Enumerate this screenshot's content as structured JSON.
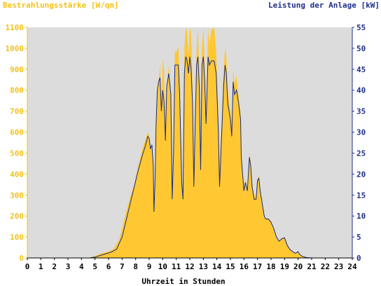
{
  "colors": {
    "irradiance_fill": "#ffc832",
    "power_line": "#1a2b80",
    "plot_bg": "#dcdcdc",
    "left_axis": "#f5c216",
    "right_axis": "#20308a"
  },
  "chart_data": {
    "type": "area",
    "title_left": "Bestrahlungsstärke [W/qm]",
    "title_right": "Leistung der Anlage [kW]",
    "xlabel": "Uhrzeit in Stunden",
    "x_ticks": [
      "0",
      "1",
      "2",
      "3",
      "4",
      "5",
      "6",
      "7",
      "8",
      "9",
      "10",
      "11",
      "12",
      "13",
      "14",
      "15",
      "16",
      "17",
      "18",
      "19",
      "20",
      "21",
      "22",
      "23",
      "24"
    ],
    "y_left_ticks": [
      "0",
      "100",
      "200",
      "300",
      "400",
      "500",
      "600",
      "700",
      "800",
      "900",
      "1000",
      "1100"
    ],
    "y_right_ticks": [
      "0",
      "5",
      "10",
      "15",
      "20",
      "25",
      "30",
      "35",
      "40",
      "45",
      "50",
      "55"
    ],
    "xlim": [
      0,
      24
    ],
    "ylim_left": [
      0,
      1100
    ],
    "ylim_right": [
      0,
      55
    ],
    "grid": false,
    "series": [
      {
        "name": "Bestrahlungsstärke [W/qm]",
        "axis": "left",
        "style": "area",
        "points": [
          [
            0,
            0
          ],
          [
            4.5,
            0
          ],
          [
            4.8,
            5
          ],
          [
            5.2,
            15
          ],
          [
            5.6,
            25
          ],
          [
            6.0,
            30
          ],
          [
            6.4,
            45
          ],
          [
            6.8,
            90
          ],
          [
            7.0,
            140
          ],
          [
            7.3,
            220
          ],
          [
            7.6,
            290
          ],
          [
            7.9,
            350
          ],
          [
            8.2,
            440
          ],
          [
            8.5,
            520
          ],
          [
            8.7,
            560
          ],
          [
            8.9,
            600
          ],
          [
            9.0,
            580
          ],
          [
            9.1,
            520
          ],
          [
            9.2,
            550
          ],
          [
            9.3,
            460
          ],
          [
            9.35,
            230
          ],
          [
            9.45,
            440
          ],
          [
            9.5,
            620
          ],
          [
            9.6,
            800
          ],
          [
            9.7,
            850
          ],
          [
            9.8,
            920
          ],
          [
            9.9,
            700
          ],
          [
            10.0,
            950
          ],
          [
            10.1,
            890
          ],
          [
            10.2,
            550
          ],
          [
            10.3,
            820
          ],
          [
            10.45,
            920
          ],
          [
            10.6,
            780
          ],
          [
            10.7,
            300
          ],
          [
            10.8,
            520
          ],
          [
            10.9,
            990
          ],
          [
            11.0,
            980
          ],
          [
            11.15,
            1010
          ],
          [
            11.25,
            860
          ],
          [
            11.4,
            420
          ],
          [
            11.5,
            300
          ],
          [
            11.6,
            1000
          ],
          [
            11.7,
            1100
          ],
          [
            11.8,
            1080
          ],
          [
            11.9,
            960
          ],
          [
            12.0,
            1100
          ],
          [
            12.1,
            1070
          ],
          [
            12.2,
            820
          ],
          [
            12.3,
            380
          ],
          [
            12.4,
            700
          ],
          [
            12.5,
            990
          ],
          [
            12.6,
            1100
          ],
          [
            12.7,
            880
          ],
          [
            12.8,
            450
          ],
          [
            12.9,
            1000
          ],
          [
            13.0,
            1100
          ],
          [
            13.1,
            920
          ],
          [
            13.2,
            700
          ],
          [
            13.35,
            1100
          ],
          [
            13.45,
            1020
          ],
          [
            13.6,
            1090
          ],
          [
            13.8,
            1100
          ],
          [
            13.95,
            980
          ],
          [
            14.1,
            700
          ],
          [
            14.2,
            420
          ],
          [
            14.35,
            650
          ],
          [
            14.5,
            900
          ],
          [
            14.6,
            1000
          ],
          [
            14.7,
            960
          ],
          [
            14.8,
            800
          ],
          [
            15.0,
            700
          ],
          [
            15.1,
            600
          ],
          [
            15.2,
            900
          ],
          [
            15.3,
            830
          ],
          [
            15.45,
            870
          ],
          [
            15.6,
            770
          ],
          [
            15.75,
            690
          ],
          [
            15.8,
            500
          ],
          [
            15.9,
            420
          ],
          [
            16.0,
            300
          ],
          [
            16.1,
            380
          ],
          [
            16.25,
            330
          ],
          [
            16.4,
            500
          ],
          [
            16.5,
            460
          ],
          [
            16.6,
            360
          ],
          [
            16.75,
            300
          ],
          [
            16.9,
            290
          ],
          [
            17.0,
            380
          ],
          [
            17.1,
            390
          ],
          [
            17.2,
            320
          ],
          [
            17.35,
            260
          ],
          [
            17.5,
            200
          ],
          [
            17.6,
            190
          ],
          [
            17.8,
            190
          ],
          [
            18.0,
            175
          ],
          [
            18.2,
            140
          ],
          [
            18.4,
            100
          ],
          [
            18.6,
            80
          ],
          [
            18.8,
            95
          ],
          [
            19.0,
            100
          ],
          [
            19.2,
            60
          ],
          [
            19.4,
            40
          ],
          [
            19.6,
            30
          ],
          [
            19.8,
            22
          ],
          [
            20.0,
            30
          ],
          [
            20.1,
            18
          ],
          [
            20.3,
            8
          ],
          [
            20.6,
            2
          ],
          [
            21.0,
            0
          ],
          [
            24,
            0
          ]
        ]
      },
      {
        "name": "Leistung der Anlage [kW]",
        "axis": "right",
        "style": "line",
        "points": [
          [
            0,
            0
          ],
          [
            4.6,
            0
          ],
          [
            5.0,
            0.2
          ],
          [
            5.4,
            0.6
          ],
          [
            5.8,
            1.0
          ],
          [
            6.2,
            1.4
          ],
          [
            6.6,
            2.1
          ],
          [
            7.0,
            5
          ],
          [
            7.3,
            9
          ],
          [
            7.6,
            13
          ],
          [
            7.9,
            17
          ],
          [
            8.2,
            21
          ],
          [
            8.5,
            24.5
          ],
          [
            8.7,
            26.5
          ],
          [
            8.9,
            29
          ],
          [
            9.0,
            28.5
          ],
          [
            9.1,
            26
          ],
          [
            9.2,
            27
          ],
          [
            9.3,
            22
          ],
          [
            9.35,
            11
          ],
          [
            9.45,
            20
          ],
          [
            9.5,
            31
          ],
          [
            9.6,
            40
          ],
          [
            9.7,
            42
          ],
          [
            9.8,
            43
          ],
          [
            9.9,
            35
          ],
          [
            10.0,
            40
          ],
          [
            10.1,
            37
          ],
          [
            10.2,
            28
          ],
          [
            10.3,
            41
          ],
          [
            10.45,
            44
          ],
          [
            10.6,
            39
          ],
          [
            10.7,
            14
          ],
          [
            10.8,
            25
          ],
          [
            10.9,
            46
          ],
          [
            11.0,
            46
          ],
          [
            11.15,
            46
          ],
          [
            11.25,
            39
          ],
          [
            11.4,
            18
          ],
          [
            11.5,
            14
          ],
          [
            11.6,
            44
          ],
          [
            11.7,
            48
          ],
          [
            11.8,
            47
          ],
          [
            11.9,
            44
          ],
          [
            12.0,
            48
          ],
          [
            12.1,
            45
          ],
          [
            12.2,
            37
          ],
          [
            12.3,
            17
          ],
          [
            12.4,
            32
          ],
          [
            12.5,
            46
          ],
          [
            12.6,
            48
          ],
          [
            12.7,
            41
          ],
          [
            12.8,
            21
          ],
          [
            12.9,
            46
          ],
          [
            13.0,
            48
          ],
          [
            13.1,
            42
          ],
          [
            13.2,
            32
          ],
          [
            13.35,
            48
          ],
          [
            13.45,
            46
          ],
          [
            13.6,
            47
          ],
          [
            13.8,
            47
          ],
          [
            13.95,
            44
          ],
          [
            14.1,
            31
          ],
          [
            14.2,
            17
          ],
          [
            14.35,
            29
          ],
          [
            14.5,
            41
          ],
          [
            14.6,
            46
          ],
          [
            14.7,
            44
          ],
          [
            14.8,
            37
          ],
          [
            15.0,
            33
          ],
          [
            15.1,
            29
          ],
          [
            15.2,
            42
          ],
          [
            15.3,
            39
          ],
          [
            15.45,
            40
          ],
          [
            15.6,
            37
          ],
          [
            15.75,
            33
          ],
          [
            15.8,
            24
          ],
          [
            15.9,
            20
          ],
          [
            16.0,
            16
          ],
          [
            16.1,
            18
          ],
          [
            16.25,
            16
          ],
          [
            16.4,
            24
          ],
          [
            16.5,
            22
          ],
          [
            16.6,
            17
          ],
          [
            16.75,
            14
          ],
          [
            16.9,
            14
          ],
          [
            17.0,
            18.5
          ],
          [
            17.1,
            19
          ],
          [
            17.2,
            16
          ],
          [
            17.35,
            13
          ],
          [
            17.5,
            10
          ],
          [
            17.6,
            9.3
          ],
          [
            17.8,
            9.3
          ],
          [
            18.0,
            8.5
          ],
          [
            18.2,
            7
          ],
          [
            18.4,
            5
          ],
          [
            18.6,
            4
          ],
          [
            18.8,
            4.6
          ],
          [
            19.0,
            4.8
          ],
          [
            19.2,
            3
          ],
          [
            19.4,
            2
          ],
          [
            19.6,
            1.5
          ],
          [
            19.8,
            1.1
          ],
          [
            20.0,
            1.5
          ],
          [
            20.1,
            0.9
          ],
          [
            20.3,
            0.4
          ],
          [
            20.6,
            0.1
          ],
          [
            21.0,
            0
          ],
          [
            24,
            0
          ]
        ]
      }
    ]
  }
}
